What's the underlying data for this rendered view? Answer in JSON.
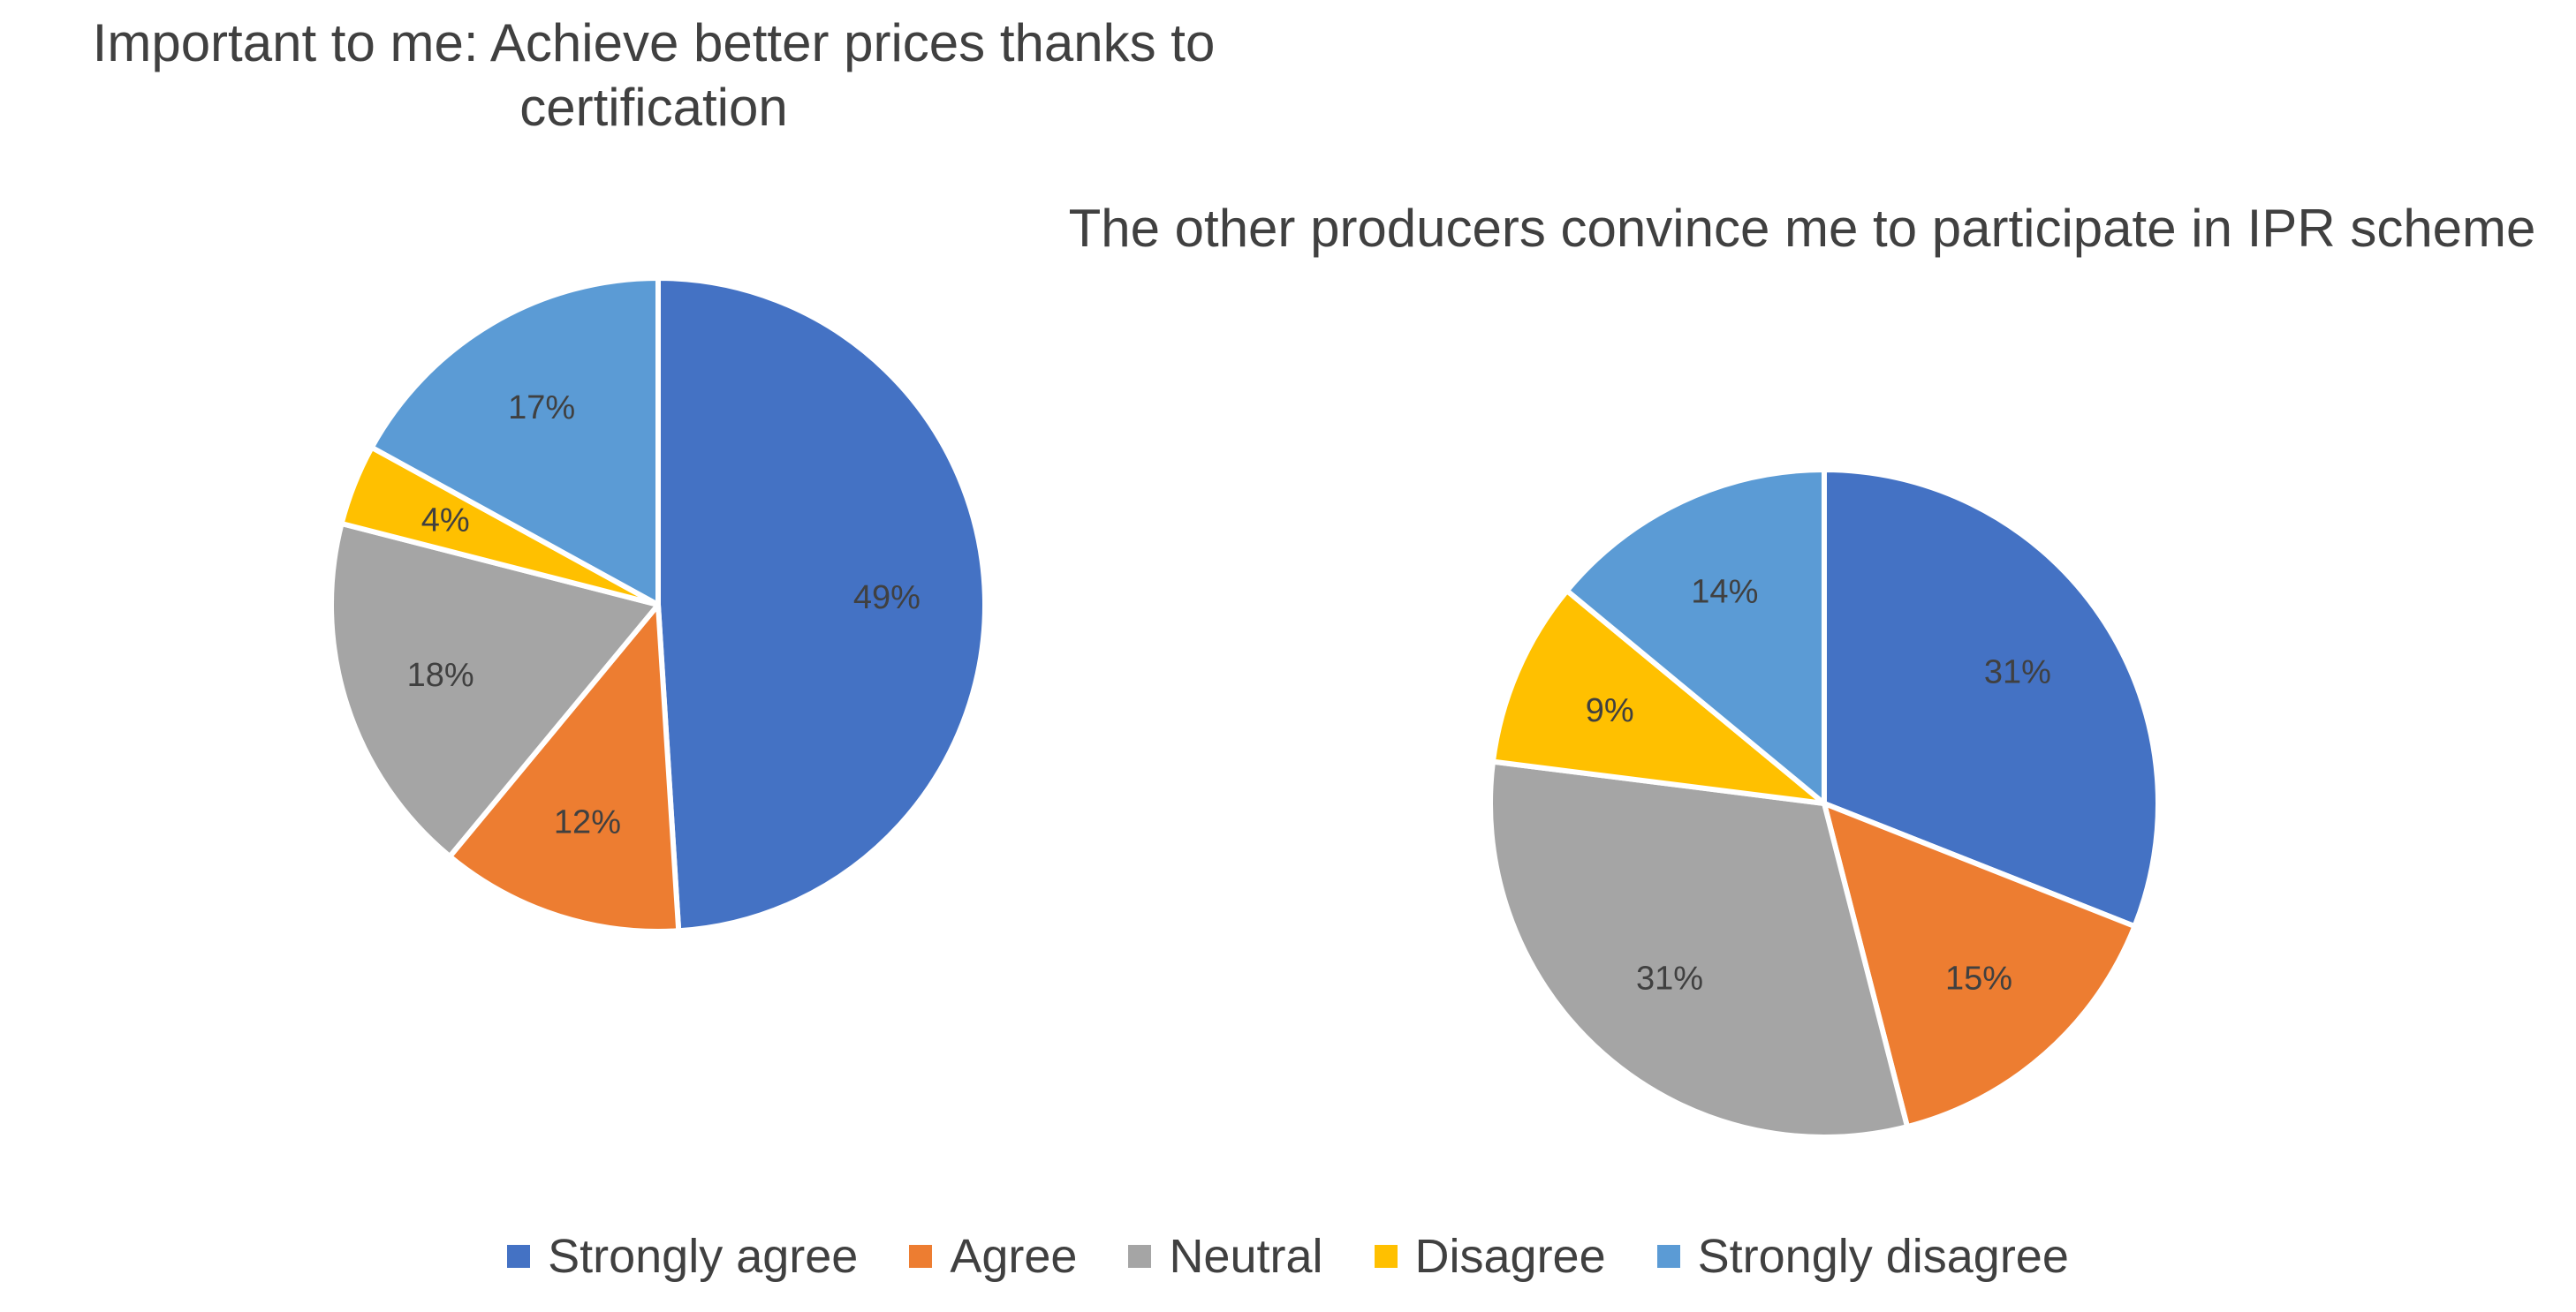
{
  "chart_data": [
    {
      "type": "pie",
      "title": "Important to me: Achieve better prices thanks to certification",
      "categories": [
        "Strongly agree",
        "Agree",
        "Neutral",
        "Disagree",
        "Strongly disagree"
      ],
      "values": [
        49,
        12,
        18,
        4,
        17
      ],
      "labels": [
        "49%",
        "12%",
        "18%",
        "4%",
        "17%"
      ]
    },
    {
      "type": "pie",
      "title": "The other producers convince me to participate in IPR scheme",
      "categories": [
        "Strongly agree",
        "Agree",
        "Neutral",
        "Disagree",
        "Strongly disagree"
      ],
      "values": [
        31,
        15,
        31,
        9,
        14
      ],
      "labels": [
        "31%",
        "15%",
        "31%",
        "9%",
        "14%"
      ]
    }
  ],
  "legend": {
    "placement": "bottom",
    "items": [
      {
        "label": "Strongly agree",
        "color": "#4472C4"
      },
      {
        "label": "Agree",
        "color": "#ED7D31"
      },
      {
        "label": "Neutral",
        "color": "#A5A5A5"
      },
      {
        "label": "Disagree",
        "color": "#FFC000"
      },
      {
        "label": "Strongly disagree",
        "color": "#5B9BD5"
      }
    ]
  }
}
